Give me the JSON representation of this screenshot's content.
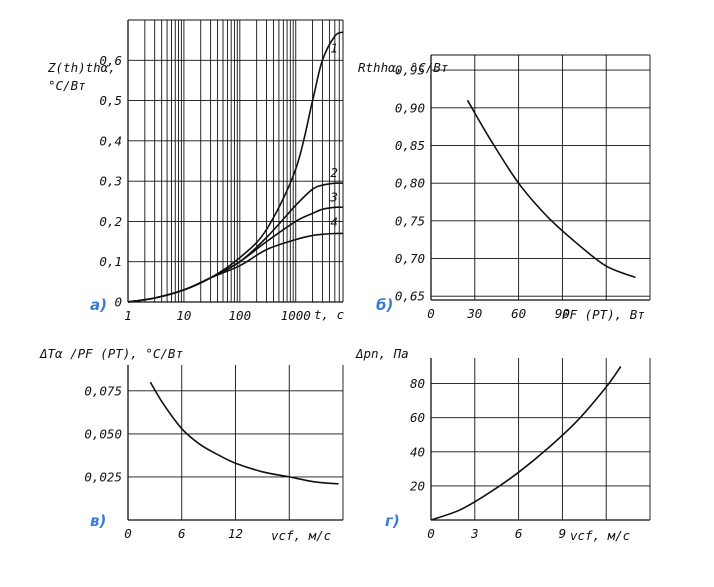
{
  "chart_data": [
    {
      "panel": "a",
      "panel_label": "а)",
      "type": "line",
      "x_scale": "log",
      "xlabel": "t, c",
      "ylabel_line1": "Z(th)thα,",
      "ylabel_line2": "°C/Вт",
      "x_ticks": [
        "1",
        "10",
        "100",
        "1000"
      ],
      "y_ticks": [
        "0",
        "0,1",
        "0,2",
        "0,3",
        "0,4",
        "0,5",
        "0,6"
      ],
      "xlim": [
        1,
        7000
      ],
      "ylim": [
        0,
        0.7
      ],
      "series": [
        {
          "name": "1",
          "x": [
            1,
            3,
            10,
            30,
            100,
            300,
            1000,
            2000,
            3000,
            5000,
            7000
          ],
          "y": [
            0.0,
            0.01,
            0.03,
            0.06,
            0.11,
            0.18,
            0.33,
            0.5,
            0.6,
            0.66,
            0.67
          ]
        },
        {
          "name": "2",
          "x": [
            1,
            3,
            10,
            30,
            100,
            300,
            1000,
            2000,
            3000,
            5000,
            7000
          ],
          "y": [
            0.0,
            0.01,
            0.03,
            0.06,
            0.1,
            0.16,
            0.24,
            0.28,
            0.29,
            0.295,
            0.295
          ]
        },
        {
          "name": "3",
          "x": [
            1,
            3,
            10,
            30,
            100,
            300,
            1000,
            2000,
            3000,
            5000,
            7000
          ],
          "y": [
            0.0,
            0.01,
            0.03,
            0.06,
            0.1,
            0.15,
            0.2,
            0.22,
            0.23,
            0.235,
            0.235
          ]
        },
        {
          "name": "4",
          "x": [
            1,
            3,
            10,
            30,
            100,
            300,
            1000,
            2000,
            3000,
            5000,
            7000
          ],
          "y": [
            0.0,
            0.01,
            0.03,
            0.06,
            0.09,
            0.13,
            0.155,
            0.165,
            0.168,
            0.17,
            0.17
          ]
        }
      ]
    },
    {
      "panel": "b",
      "panel_label": "б)",
      "type": "line",
      "xlabel": "PF (PT), Вт",
      "ylabel": "Rthhα, °C/Вт",
      "x_ticks": [
        "0",
        "30",
        "60",
        "90"
      ],
      "y_ticks": [
        "0,65",
        "0,70",
        "0,75",
        "0,80",
        "0,85",
        "0,90",
        "0,95"
      ],
      "xlim": [
        0,
        150
      ],
      "ylim": [
        0.645,
        0.97
      ],
      "series": [
        {
          "x": [
            25,
            40,
            60,
            80,
            100,
            120,
            140
          ],
          "y": [
            0.91,
            0.86,
            0.8,
            0.755,
            0.72,
            0.69,
            0.675
          ]
        }
      ]
    },
    {
      "panel": "c",
      "panel_label": "в)",
      "type": "line",
      "xlabel": "vcf, м/с",
      "ylabel": "ΔTα /PF (PT), °C/Вт",
      "x_ticks": [
        "0",
        "6",
        "12"
      ],
      "y_ticks": [
        "0,025",
        "0,050",
        "0,075"
      ],
      "xlim": [
        0,
        24
      ],
      "ylim": [
        0,
        0.09
      ],
      "series": [
        {
          "x": [
            2.5,
            4,
            6,
            8,
            10,
            12,
            15,
            18,
            21,
            23.5
          ],
          "y": [
            0.08,
            0.067,
            0.053,
            0.044,
            0.038,
            0.033,
            0.028,
            0.025,
            0.022,
            0.021
          ]
        }
      ]
    },
    {
      "panel": "d",
      "panel_label": "г)",
      "type": "line",
      "xlabel": "vcf, м/с",
      "ylabel": "Δpn, Па",
      "x_ticks": [
        "0",
        "3",
        "6",
        "9"
      ],
      "y_ticks": [
        "20",
        "40",
        "60",
        "80"
      ],
      "xlim": [
        0,
        15
      ],
      "ylim": [
        0,
        95
      ],
      "series": [
        {
          "x": [
            0,
            2,
            4,
            6,
            8,
            10,
            12,
            13
          ],
          "y": [
            0,
            6,
            16,
            28,
            42,
            58,
            78,
            90
          ]
        }
      ]
    }
  ]
}
